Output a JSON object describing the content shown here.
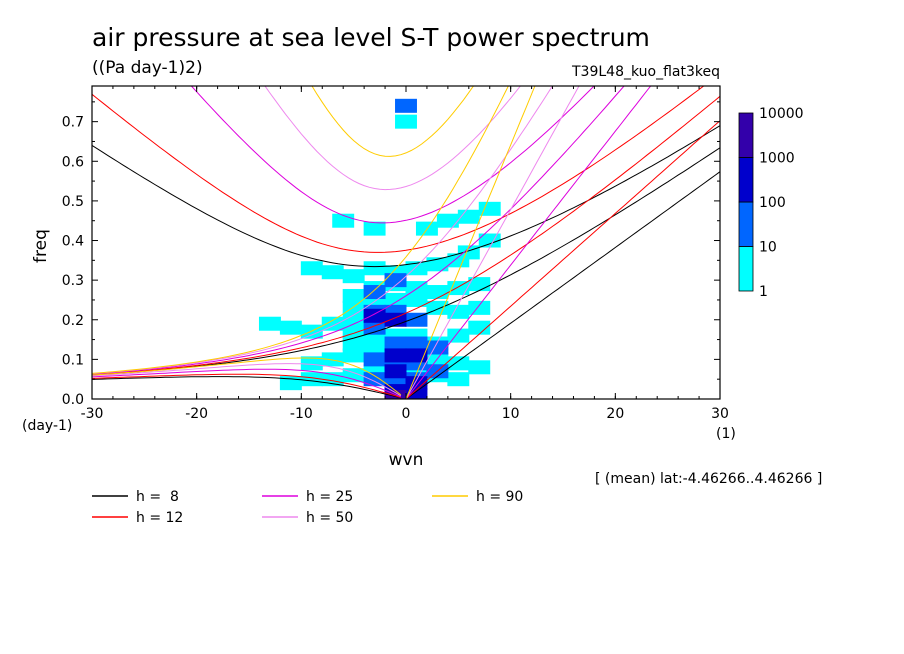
{
  "chart_data": {
    "type": "heatmap",
    "title": "air pressure at sea level S-T power spectrum",
    "units": "((Pa day-1)2)",
    "run_label": "T39L48_kuo_flat3keq",
    "xlabel": "wvn",
    "ylabel": "freq",
    "x_unit": "(1)",
    "y_unit": "(day-1)",
    "xlim": [
      -30,
      30
    ],
    "ylim": [
      0,
      0.79
    ],
    "x_ticks": [
      -30,
      -20,
      -10,
      0,
      10,
      20,
      30
    ],
    "x_tick_labels": [
      "-30",
      "-20",
      "-10",
      "0",
      "10",
      "20",
      "30"
    ],
    "y_ticks": [
      0,
      0.1,
      0.2,
      0.3,
      0.4,
      0.5,
      0.6,
      0.7
    ],
    "y_tick_labels": [
      "0.0",
      "0.1",
      "0.2",
      "0.3",
      "0.4",
      "0.5",
      "0.6",
      "0.7"
    ],
    "footnote": "[ (mean) lat:-4.46266..4.46266 ]",
    "colorbar": {
      "levels": [
        "1",
        "10",
        "100",
        "1000",
        "10000"
      ],
      "colors": [
        "#00ffff",
        "#0066ff",
        "#0000cc",
        "#3300aa"
      ]
    },
    "dispersion_curves": [
      {
        "label": "h =  8",
        "h": 8,
        "color": "#000000"
      },
      {
        "label": "h = 12",
        "h": 12,
        "color": "#ff0000"
      },
      {
        "label": "h = 25",
        "h": 25,
        "color": "#dd00dd"
      },
      {
        "label": "h = 50",
        "h": 50,
        "color": "#ee88ee"
      },
      {
        "label": "h = 90",
        "h": 90,
        "color": "#ffcc00"
      }
    ],
    "spectrum_cells": [
      [
        0,
        0.74,
        2
      ],
      [
        0,
        0.7,
        1
      ],
      [
        -6,
        0.45,
        1
      ],
      [
        -3,
        0.43,
        1
      ],
      [
        2,
        0.43,
        1
      ],
      [
        4,
        0.45,
        1
      ],
      [
        6,
        0.46,
        1
      ],
      [
        8,
        0.48,
        1
      ],
      [
        -9,
        0.33,
        1
      ],
      [
        -7,
        0.32,
        1
      ],
      [
        -5,
        0.31,
        1
      ],
      [
        -3,
        0.33,
        1
      ],
      [
        -1,
        0.32,
        1
      ],
      [
        1,
        0.33,
        1
      ],
      [
        3,
        0.34,
        1
      ],
      [
        5,
        0.35,
        1
      ],
      [
        6,
        0.37,
        1
      ],
      [
        8,
        0.4,
        1
      ],
      [
        -13,
        0.19,
        1
      ],
      [
        -11,
        0.18,
        1
      ],
      [
        -9,
        0.17,
        1
      ],
      [
        -7,
        0.19,
        1
      ],
      [
        -5,
        0.2,
        1
      ],
      [
        -5,
        0.17,
        1
      ],
      [
        -5,
        0.26,
        1
      ],
      [
        -3,
        0.28,
        1
      ],
      [
        -1,
        0.29,
        1
      ],
      [
        1,
        0.28,
        1
      ],
      [
        3,
        0.27,
        1
      ],
      [
        5,
        0.28,
        1
      ],
      [
        7,
        0.29,
        1
      ],
      [
        -5,
        0.23,
        1
      ],
      [
        -3,
        0.24,
        1
      ],
      [
        -1,
        0.25,
        1
      ],
      [
        1,
        0.25,
        1
      ],
      [
        3,
        0.23,
        1
      ],
      [
        5,
        0.22,
        1
      ],
      [
        7,
        0.23,
        1
      ],
      [
        -5,
        0.14,
        1
      ],
      [
        -3,
        0.15,
        1
      ],
      [
        -1,
        0.16,
        1
      ],
      [
        1,
        0.16,
        1
      ],
      [
        3,
        0.14,
        1
      ],
      [
        5,
        0.16,
        1
      ],
      [
        7,
        0.18,
        1
      ],
      [
        -9,
        0.09,
        1
      ],
      [
        -7,
        0.1,
        1
      ],
      [
        -5,
        0.11,
        1
      ],
      [
        -3,
        0.12,
        1
      ],
      [
        -1,
        0.12,
        1
      ],
      [
        1,
        0.11,
        1
      ],
      [
        3,
        0.1,
        1
      ],
      [
        5,
        0.09,
        1
      ],
      [
        7,
        0.08,
        1
      ],
      [
        -11,
        0.04,
        1
      ],
      [
        -9,
        0.05,
        1
      ],
      [
        -7,
        0.05,
        1
      ],
      [
        -5,
        0.06,
        1
      ],
      [
        -3,
        0.07,
        1
      ],
      [
        -1,
        0.07,
        1
      ],
      [
        1,
        0.07,
        1
      ],
      [
        3,
        0.06,
        1
      ],
      [
        5,
        0.05,
        1
      ],
      [
        -3,
        0.27,
        2
      ],
      [
        -1,
        0.3,
        2
      ],
      [
        -3,
        0.22,
        2
      ],
      [
        -1,
        0.22,
        2
      ],
      [
        1,
        0.2,
        2
      ],
      [
        -3,
        0.18,
        2
      ],
      [
        -1,
        0.14,
        2
      ],
      [
        1,
        0.14,
        2
      ],
      [
        -3,
        0.1,
        2
      ],
      [
        -1,
        0.09,
        2
      ],
      [
        1,
        0.09,
        2
      ],
      [
        3,
        0.13,
        2
      ],
      [
        3,
        0.07,
        2
      ],
      [
        -3,
        0.05,
        2
      ],
      [
        -1,
        0.04,
        2
      ],
      [
        1,
        0.05,
        2
      ],
      [
        -1,
        0.2,
        3
      ],
      [
        -3,
        0.21,
        3
      ],
      [
        -1,
        0.11,
        3
      ],
      [
        1,
        0.11,
        3
      ],
      [
        -1,
        0.07,
        3
      ],
      [
        1,
        0.04,
        3
      ],
      [
        -1,
        0.02,
        3
      ],
      [
        1,
        0.01,
        3
      ],
      [
        -1,
        0.005,
        4
      ]
    ]
  },
  "legend_items": [
    {
      "label": "h =  8",
      "color": "#000000"
    },
    {
      "label": "h = 12",
      "color": "#ff0000"
    },
    {
      "label": "h = 25",
      "color": "#dd00dd"
    },
    {
      "label": "h = 50",
      "color": "#ee88ee"
    },
    {
      "label": "h = 90",
      "color": "#ffcc00"
    }
  ]
}
